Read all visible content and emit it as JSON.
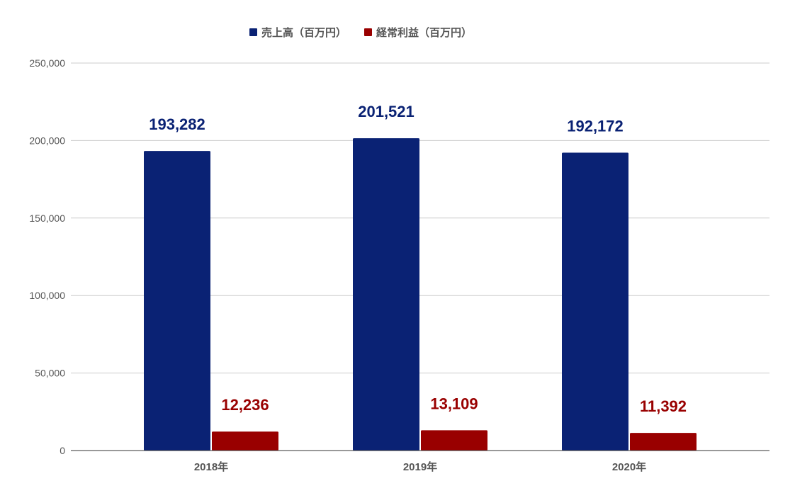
{
  "chart_data": {
    "type": "bar",
    "categories": [
      "2018年",
      "2019年",
      "2020年"
    ],
    "series": [
      {
        "name": "売上高（百万円）",
        "values": [
          193282,
          201521,
          192172
        ],
        "value_labels": [
          "193,282",
          "201,521",
          "192,172"
        ],
        "color": "#0a2274"
      },
      {
        "name": "経常利益（百万円）",
        "values": [
          12236,
          13109,
          11392
        ],
        "value_labels": [
          "12,236",
          "13,109",
          "11,392"
        ],
        "color": "#990000"
      }
    ],
    "y_ticks": [
      0,
      50000,
      100000,
      150000,
      200000,
      250000
    ],
    "y_tick_labels": [
      "0",
      "50,000",
      "100,000",
      "150,000",
      "200,000",
      "250,000"
    ],
    "ylim": [
      0,
      250000
    ],
    "grid": true,
    "legend_position": "top-center",
    "gridline_color": "#cccccc",
    "axis_color": "#333333"
  }
}
